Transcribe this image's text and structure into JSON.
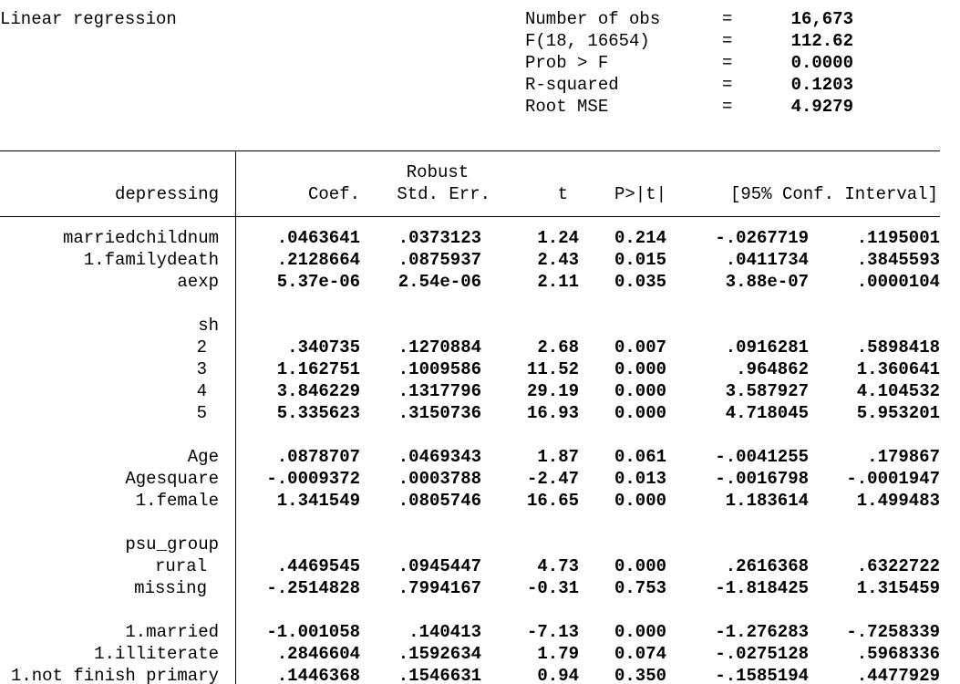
{
  "title": "Linear regression",
  "stats": [
    {
      "label": "Number of obs",
      "sign": "=",
      "value": "16,673"
    },
    {
      "label": "F(18, 16654)",
      "sign": "=",
      "value": "112.62"
    },
    {
      "label": "Prob > F",
      "sign": "=",
      "value": "0.0000"
    },
    {
      "label": "R-squared",
      "sign": "=",
      "value": "0.1203"
    },
    {
      "label": "Root MSE",
      "sign": "=",
      "value": "4.9279"
    }
  ],
  "table": {
    "header": {
      "depvar": "depressing",
      "super": "Robust",
      "columns": [
        "Coef.",
        "Std. Err.",
        "t",
        "P>|t|",
        "[95% Conf. Interval]"
      ]
    },
    "sections": [
      {
        "rows": [
          {
            "label": "marriedchildnum",
            "values": [
              ".0463641",
              ".0373123",
              "1.24",
              "0.214",
              "-.0267719",
              ".1195001"
            ]
          },
          {
            "label": "1.familydeath",
            "values": [
              ".2128664",
              ".0875937",
              "2.43",
              "0.015",
              ".0411734",
              ".3845593"
            ]
          },
          {
            "label": "aexp",
            "values": [
              "5.37e-06",
              "2.54e-06",
              "2.11",
              "0.035",
              "3.88e-07",
              ".0000104"
            ]
          }
        ]
      },
      {
        "title": "sh",
        "rows": [
          {
            "label": "2",
            "values": [
              ".340735",
              ".1270884",
              "2.68",
              "0.007",
              ".0916281",
              ".5898418"
            ]
          },
          {
            "label": "3",
            "values": [
              "1.162751",
              ".1009586",
              "11.52",
              "0.000",
              ".964862",
              "1.360641"
            ]
          },
          {
            "label": "4",
            "values": [
              "3.846229",
              ".1317796",
              "29.19",
              "0.000",
              "3.587927",
              "4.104532"
            ]
          },
          {
            "label": "5",
            "values": [
              "5.335623",
              ".3150736",
              "16.93",
              "0.000",
              "4.718045",
              "5.953201"
            ]
          }
        ]
      },
      {
        "rows": [
          {
            "label": "Age",
            "values": [
              ".0878707",
              ".0469343",
              "1.87",
              "0.061",
              "-.0041255",
              ".179867"
            ]
          },
          {
            "label": "Agesquare",
            "values": [
              "-.0009372",
              ".0003788",
              "-2.47",
              "0.013",
              "-.0016798",
              "-.0001947"
            ]
          },
          {
            "label": "1.female",
            "values": [
              "1.341549",
              ".0805746",
              "16.65",
              "0.000",
              "1.183614",
              "1.499483"
            ]
          }
        ]
      },
      {
        "title": "psu_group",
        "rows": [
          {
            "label": "rural",
            "values": [
              ".4469545",
              ".0945447",
              "4.73",
              "0.000",
              ".2616368",
              ".6322722"
            ]
          },
          {
            "label": "missing",
            "values": [
              "-.2514828",
              ".7994167",
              "-0.31",
              "0.753",
              "-1.818425",
              "1.315459"
            ]
          }
        ]
      },
      {
        "rows": [
          {
            "label": "1.married",
            "values": [
              "-1.001058",
              ".140413",
              "-7.13",
              "0.000",
              "-1.276283",
              "-.7258339"
            ]
          },
          {
            "label": "1.illiterate",
            "values": [
              ".2846604",
              ".1592634",
              "1.79",
              "0.074",
              "-.0275128",
              ".5968336"
            ]
          },
          {
            "label": "1.not finish primary",
            "values": [
              ".1446368",
              ".1546631",
              "0.94",
              "0.350",
              "-.1585194",
              ".4477929"
            ]
          }
        ]
      }
    ]
  }
}
